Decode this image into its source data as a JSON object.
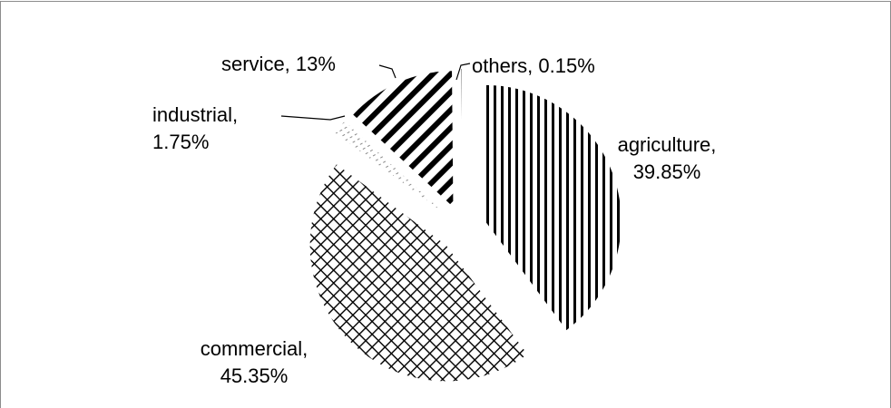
{
  "chart_data": {
    "type": "pie",
    "value_labels": [
      "agriculture, 39.85%",
      "commercial, 45.35%",
      "industrial, 1.75%",
      "service, 13%",
      "others, 0.15%"
    ],
    "values": [
      39.85,
      45.35,
      1.75,
      13,
      0.15
    ],
    "exploded": true
  }
}
